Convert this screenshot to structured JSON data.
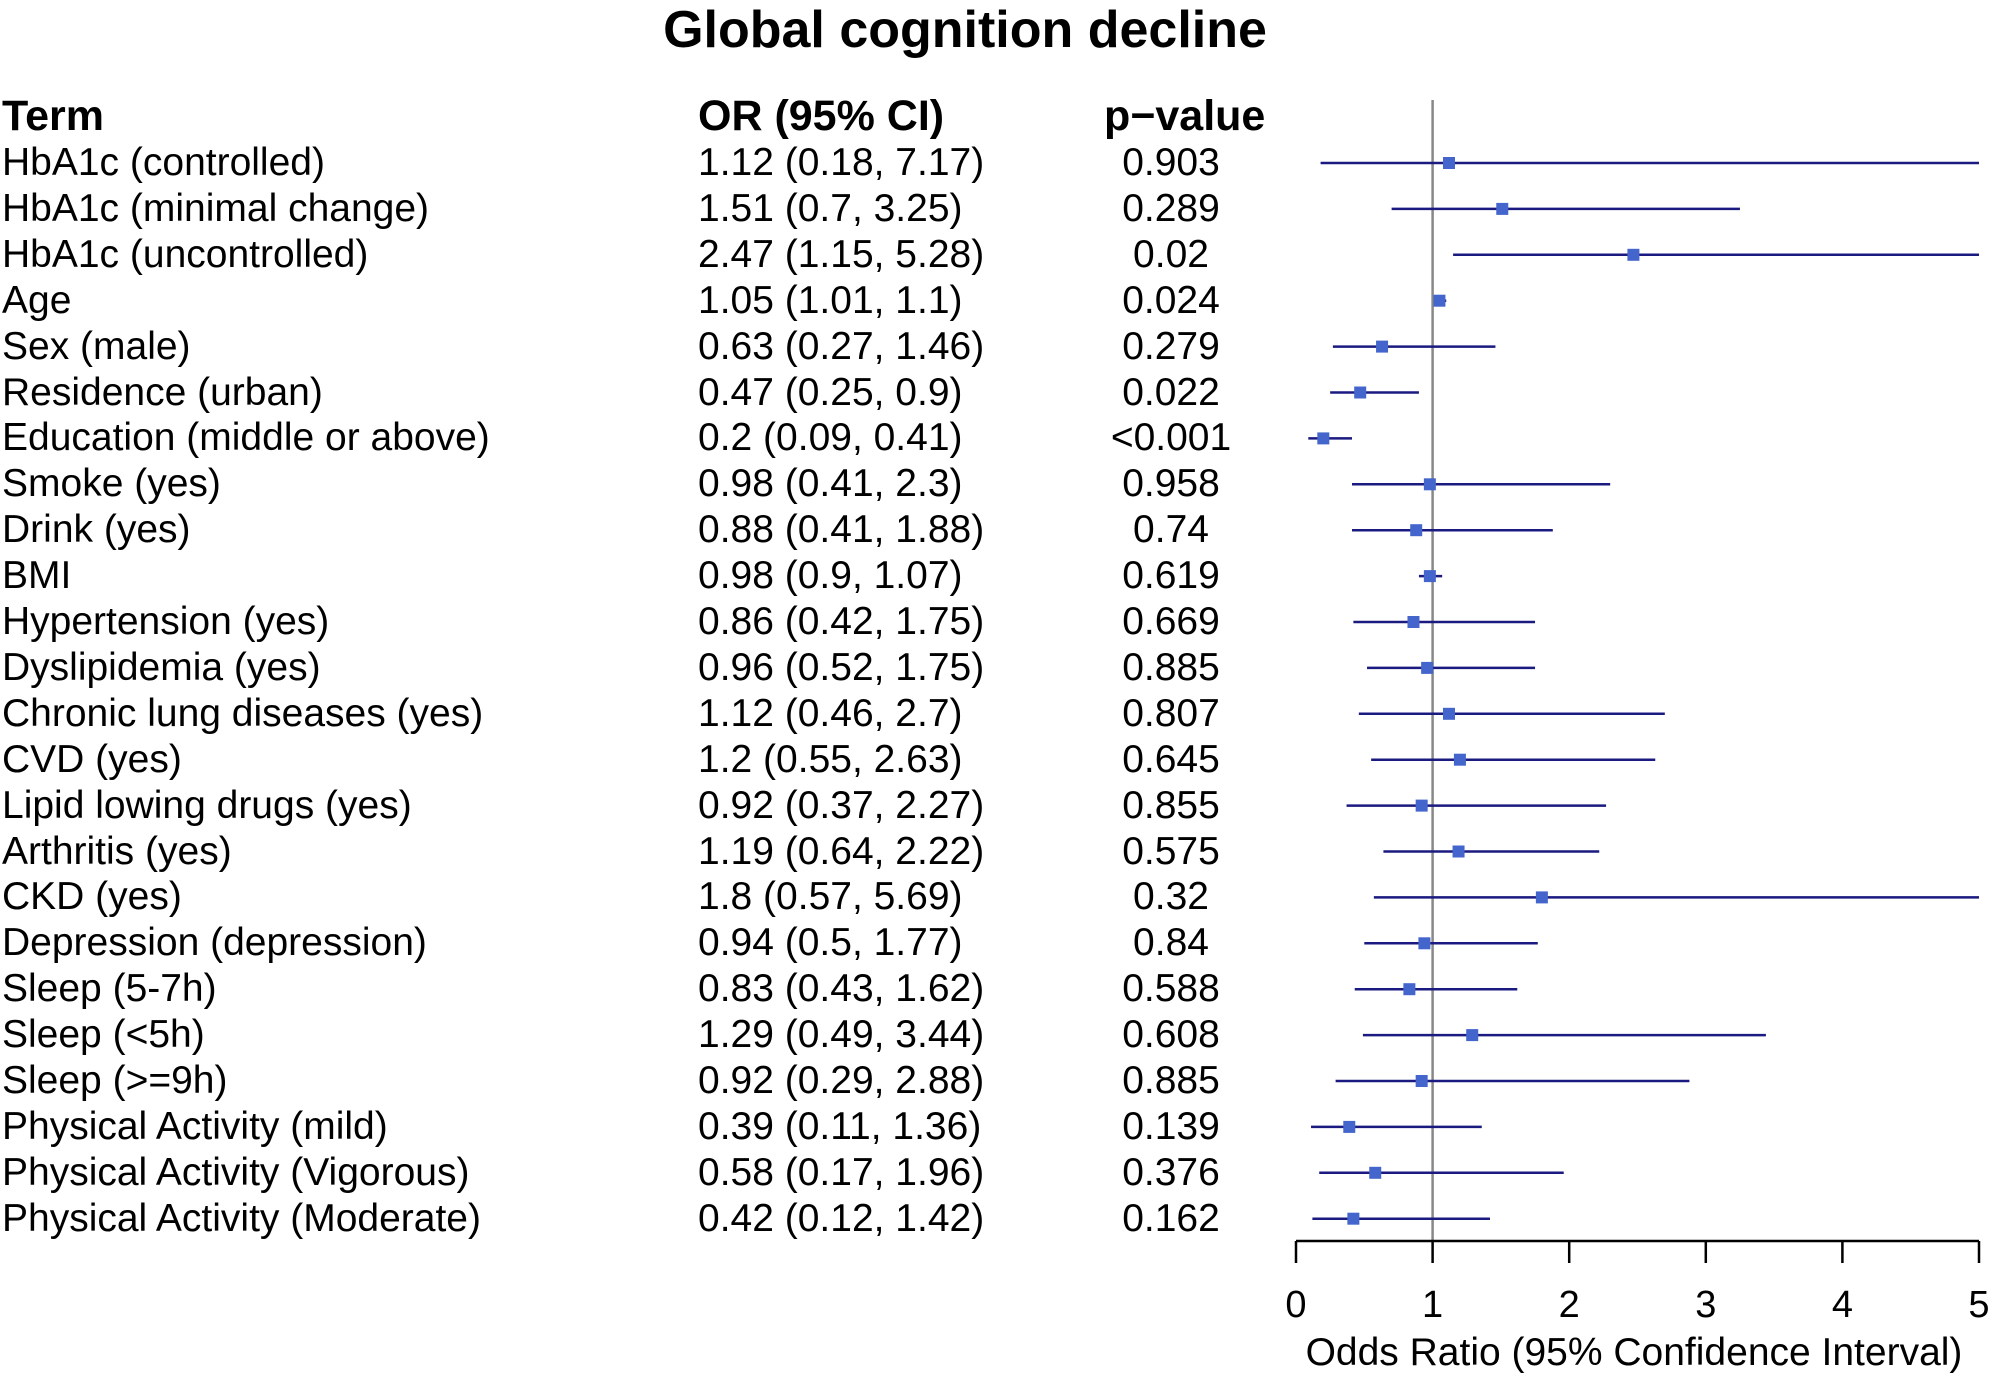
{
  "chart_data": {
    "type": "forest",
    "title": "Global cognition decline",
    "columns": {
      "term": "Term",
      "or_ci": "OR (95% CI)",
      "p_value": "p−value"
    },
    "xlabel": "Odds Ratio (95% Confidence Interval)",
    "xlim": [
      0,
      5
    ],
    "xticks": [
      0,
      1,
      2,
      3,
      4,
      5
    ],
    "reference_line": 1,
    "colors": {
      "point": "#4466cc",
      "ci_line": "#1a1a80",
      "reference": "#888888",
      "axis": "#000000"
    },
    "rows": [
      {
        "term": "HbA1c (controlled)",
        "or_ci": "1.12 (0.18, 7.17)",
        "p": "0.903",
        "or": 1.12,
        "lo": 0.18,
        "hi": 7.17
      },
      {
        "term": "HbA1c (minimal change)",
        "or_ci": "1.51 (0.7, 3.25)",
        "p": "0.289",
        "or": 1.51,
        "lo": 0.7,
        "hi": 3.25
      },
      {
        "term": "HbA1c (uncontrolled)",
        "or_ci": "2.47 (1.15, 5.28)",
        "p": "0.02",
        "or": 2.47,
        "lo": 1.15,
        "hi": 5.28
      },
      {
        "term": "Age",
        "or_ci": "1.05 (1.01, 1.1)",
        "p": "0.024",
        "or": 1.05,
        "lo": 1.01,
        "hi": 1.1
      },
      {
        "term": "Sex (male)",
        "or_ci": "0.63 (0.27, 1.46)",
        "p": "0.279",
        "or": 0.63,
        "lo": 0.27,
        "hi": 1.46
      },
      {
        "term": "Residence (urban)",
        "or_ci": "0.47 (0.25, 0.9)",
        "p": "0.022",
        "or": 0.47,
        "lo": 0.25,
        "hi": 0.9
      },
      {
        "term": "Education (middle or above)",
        "or_ci": "0.2 (0.09, 0.41)",
        "p": "<0.001",
        "or": 0.2,
        "lo": 0.09,
        "hi": 0.41
      },
      {
        "term": "Smoke (yes)",
        "or_ci": "0.98 (0.41, 2.3)",
        "p": "0.958",
        "or": 0.98,
        "lo": 0.41,
        "hi": 2.3
      },
      {
        "term": "Drink (yes)",
        "or_ci": "0.88 (0.41, 1.88)",
        "p": "0.74",
        "or": 0.88,
        "lo": 0.41,
        "hi": 1.88
      },
      {
        "term": "BMI",
        "or_ci": "0.98 (0.9, 1.07)",
        "p": "0.619",
        "or": 0.98,
        "lo": 0.9,
        "hi": 1.07
      },
      {
        "term": "Hypertension (yes)",
        "or_ci": "0.86 (0.42, 1.75)",
        "p": "0.669",
        "or": 0.86,
        "lo": 0.42,
        "hi": 1.75
      },
      {
        "term": "Dyslipidemia (yes)",
        "or_ci": "0.96 (0.52, 1.75)",
        "p": "0.885",
        "or": 0.96,
        "lo": 0.52,
        "hi": 1.75
      },
      {
        "term": "Chronic lung diseases (yes)",
        "or_ci": "1.12 (0.46, 2.7)",
        "p": "0.807",
        "or": 1.12,
        "lo": 0.46,
        "hi": 2.7
      },
      {
        "term": "CVD (yes)",
        "or_ci": "1.2 (0.55, 2.63)",
        "p": "0.645",
        "or": 1.2,
        "lo": 0.55,
        "hi": 2.63
      },
      {
        "term": "Lipid lowing drugs (yes)",
        "or_ci": "0.92 (0.37, 2.27)",
        "p": "0.855",
        "or": 0.92,
        "lo": 0.37,
        "hi": 2.27
      },
      {
        "term": "Arthritis (yes)",
        "or_ci": "1.19 (0.64, 2.22)",
        "p": "0.575",
        "or": 1.19,
        "lo": 0.64,
        "hi": 2.22
      },
      {
        "term": "CKD (yes)",
        "or_ci": "1.8 (0.57, 5.69)",
        "p": "0.32",
        "or": 1.8,
        "lo": 0.57,
        "hi": 5.69
      },
      {
        "term": "Depression (depression)",
        "or_ci": "0.94 (0.5, 1.77)",
        "p": "0.84",
        "or": 0.94,
        "lo": 0.5,
        "hi": 1.77
      },
      {
        "term": "Sleep (5-7h)",
        "or_ci": "0.83 (0.43, 1.62)",
        "p": "0.588",
        "or": 0.83,
        "lo": 0.43,
        "hi": 1.62
      },
      {
        "term": "Sleep (<5h)",
        "or_ci": "1.29 (0.49, 3.44)",
        "p": "0.608",
        "or": 1.29,
        "lo": 0.49,
        "hi": 3.44
      },
      {
        "term": "Sleep (>=9h)",
        "or_ci": "0.92 (0.29, 2.88)",
        "p": "0.885",
        "or": 0.92,
        "lo": 0.29,
        "hi": 2.88
      },
      {
        "term": "Physical Activity (mild)",
        "or_ci": "0.39 (0.11, 1.36)",
        "p": "0.139",
        "or": 0.39,
        "lo": 0.11,
        "hi": 1.36
      },
      {
        "term": "Physical Activity (Vigorous)",
        "or_ci": "0.58 (0.17, 1.96)",
        "p": "0.376",
        "or": 0.58,
        "lo": 0.17,
        "hi": 1.96
      },
      {
        "term": "Physical Activity (Moderate)",
        "or_ci": "0.42 (0.12, 1.42)",
        "p": "0.162",
        "or": 0.42,
        "lo": 0.12,
        "hi": 1.42
      }
    ]
  }
}
